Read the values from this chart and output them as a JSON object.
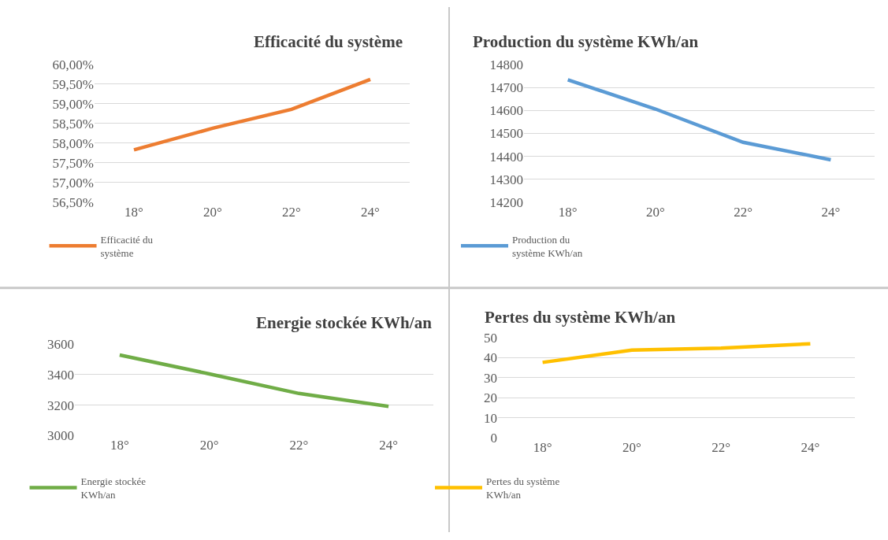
{
  "chart_data": [
    {
      "type": "line",
      "title": "Efficacité du système",
      "categories": [
        "18°",
        "20°",
        "22°",
        "24°"
      ],
      "series": [
        {
          "name": "Efficacité du système",
          "color": "#ed7d31",
          "values": [
            57.83,
            58.38,
            58.86,
            59.62
          ]
        }
      ],
      "ylim": [
        56.5,
        60
      ],
      "yticks": [
        {
          "value": 56.5,
          "label": "56,50%"
        },
        {
          "value": 57,
          "label": "57,00%"
        },
        {
          "value": 57.5,
          "label": "57,50%"
        },
        {
          "value": 58,
          "label": "58,00%"
        },
        {
          "value": 58.5,
          "label": "58,50%"
        },
        {
          "value": 59,
          "label": "59,00%"
        },
        {
          "value": 59.5,
          "label": "59,50%"
        },
        {
          "value": 60,
          "label": "60,00%"
        }
      ],
      "grid": "y",
      "legend": "bottom left"
    },
    {
      "type": "line",
      "title": "Production du système KWh/an",
      "categories": [
        "18°",
        "20°",
        "22°",
        "24°"
      ],
      "series": [
        {
          "name": "Production du système KWh/an",
          "color": "#5b9bd5",
          "values": [
            14733,
            14606,
            14461,
            14385
          ]
        }
      ],
      "ylim": [
        14200,
        14800
      ],
      "yticks": [
        14200,
        14300,
        14400,
        14500,
        14600,
        14700,
        14800
      ],
      "grid": "y",
      "legend": "bottom left"
    },
    {
      "type": "line",
      "title": "Energie stockée KWh/an",
      "categories": [
        "18°",
        "20°",
        "22°",
        "24°"
      ],
      "series": [
        {
          "name": "Energie stockée KWh/an",
          "color": "#70ad47",
          "values": [
            3527,
            3404,
            3276,
            3191
          ]
        }
      ],
      "ylim": [
        3000,
        3600
      ],
      "yticks": [
        3000,
        3200,
        3400,
        3600
      ],
      "grid": "y",
      "legend": "bottom left"
    },
    {
      "type": "line",
      "title": "Pertes du système KWh/an",
      "categories": [
        "18°",
        "20°",
        "22°",
        "24°"
      ],
      "series": [
        {
          "name": "Pertes du système KWh/an",
          "color": "#ffc000",
          "values": [
            37.7,
            43.8,
            44.8,
            47
          ]
        }
      ],
      "ylim": [
        0,
        50
      ],
      "yticks": [
        0,
        10,
        20,
        30,
        40,
        50
      ],
      "grid": "y",
      "legend": "bottom left"
    }
  ]
}
